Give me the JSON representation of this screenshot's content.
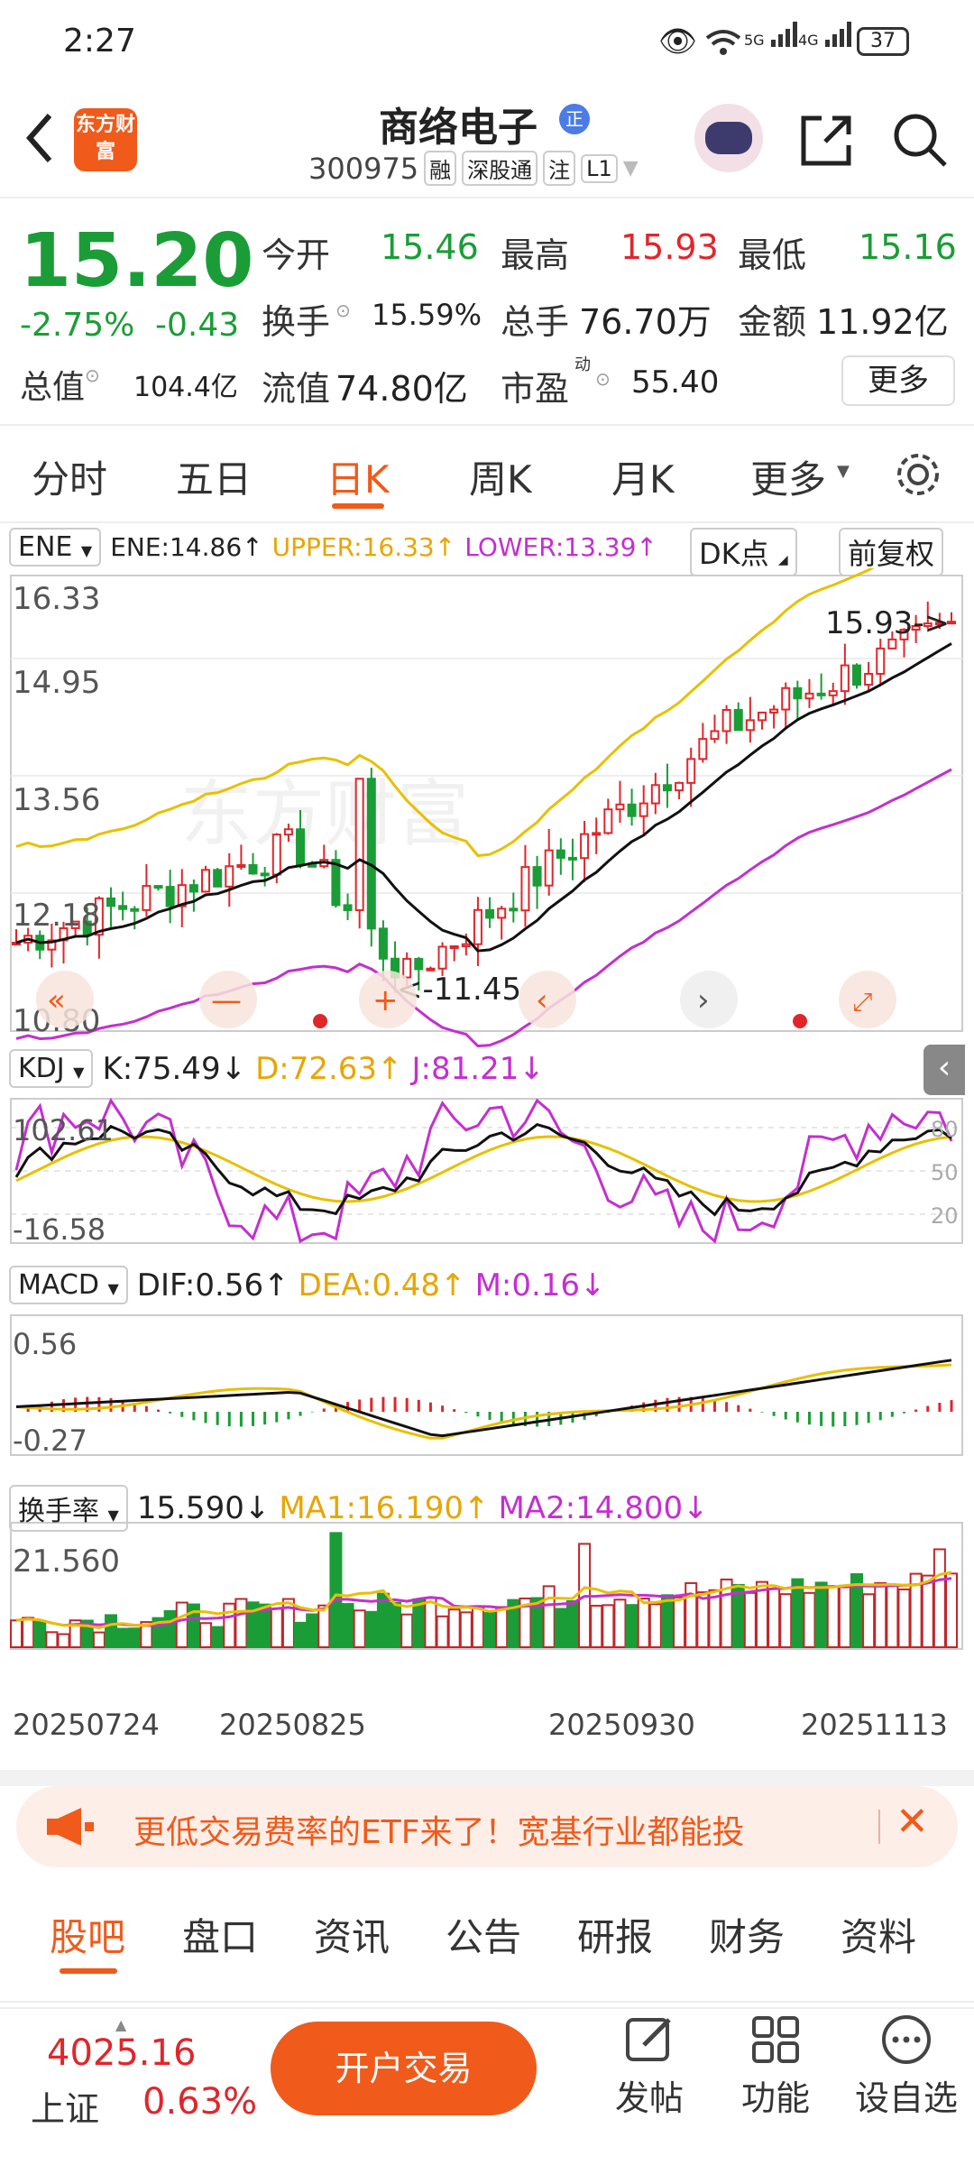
{
  "status": {
    "time": "2:27",
    "battery": "37",
    "net1": "5G",
    "net2": "4G"
  },
  "header": {
    "name": "商络电子",
    "code": "300975",
    "badges": [
      "融",
      "深股通",
      "注",
      "L1"
    ],
    "logo": "东方财富",
    "zheng": "正"
  },
  "quote": {
    "price": "15.20",
    "chg_pct": "-2.75%",
    "chg": "-0.43",
    "open_label": "今开",
    "open": "15.46",
    "high_label": "最高",
    "high": "15.93",
    "low_label": "最低",
    "low": "15.16",
    "turnover_label": "换手",
    "turnover": "15.59%",
    "volume_label": "总手",
    "volume": "76.70万",
    "amount_label": "金额",
    "amount": "11.92亿",
    "mcap_label": "总值",
    "mcap": "104.4亿",
    "float_label": "流值",
    "float": "74.80亿",
    "pe_label": "市盈",
    "pe_sup": "动",
    "pe": "55.40",
    "more": "更多"
  },
  "tabs": [
    "分时",
    "五日",
    "日K",
    "周K",
    "月K",
    "更多"
  ],
  "ene": {
    "sel": "ENE",
    "ene": "ENE:14.86↑",
    "upper": "UPPER:16.33↑",
    "lower": "LOWER:13.39↑",
    "dk": "DK点",
    "fq": "前复权",
    "y_labels": [
      "16.33",
      "14.95",
      "13.56",
      "12.18",
      "10.80"
    ],
    "hi_mark": "15.93->",
    "lo_mark": "<-11.45",
    "watermark": "东方财富"
  },
  "kdj": {
    "sel": "KDJ",
    "k": "K:75.49↓",
    "d": "D:72.63↑",
    "j": "J:81.21↓",
    "top": "102.61",
    "bottom": "-16.58",
    "r80": "80",
    "r50": "50",
    "r20": "20"
  },
  "macd": {
    "sel": "MACD",
    "dif": "DIF:0.56↑",
    "dea": "DEA:0.48↑",
    "m": "M:0.16↓",
    "top": "0.56",
    "bottom": "-0.27"
  },
  "hsl": {
    "sel": "换手率",
    "val": "15.590↓",
    "ma1": "MA1:16.190↑",
    "ma2": "MA2:14.800↓",
    "top": "21.560"
  },
  "dates": [
    "20250724",
    "20250825",
    "20250930",
    "20251113"
  ],
  "banner": {
    "text": "更低交易费率的ETF来了！宽基行业都能投"
  },
  "bottom_tabs": [
    "股吧",
    "盘口",
    "资讯",
    "公告",
    "研报",
    "财务",
    "资料"
  ],
  "footer": {
    "index_val": "4025.16",
    "index_name": "上证",
    "index_pct": "0.63%",
    "trade": "开户交易",
    "post": "发帖",
    "func": "功能",
    "fav": "设自选"
  },
  "colors": {
    "up": "#e0262b",
    "down": "#1a9d36",
    "accent": "#f05a1a",
    "mid": "#000000",
    "upper": "#e8c000",
    "lower": "#c42fd0"
  }
}
